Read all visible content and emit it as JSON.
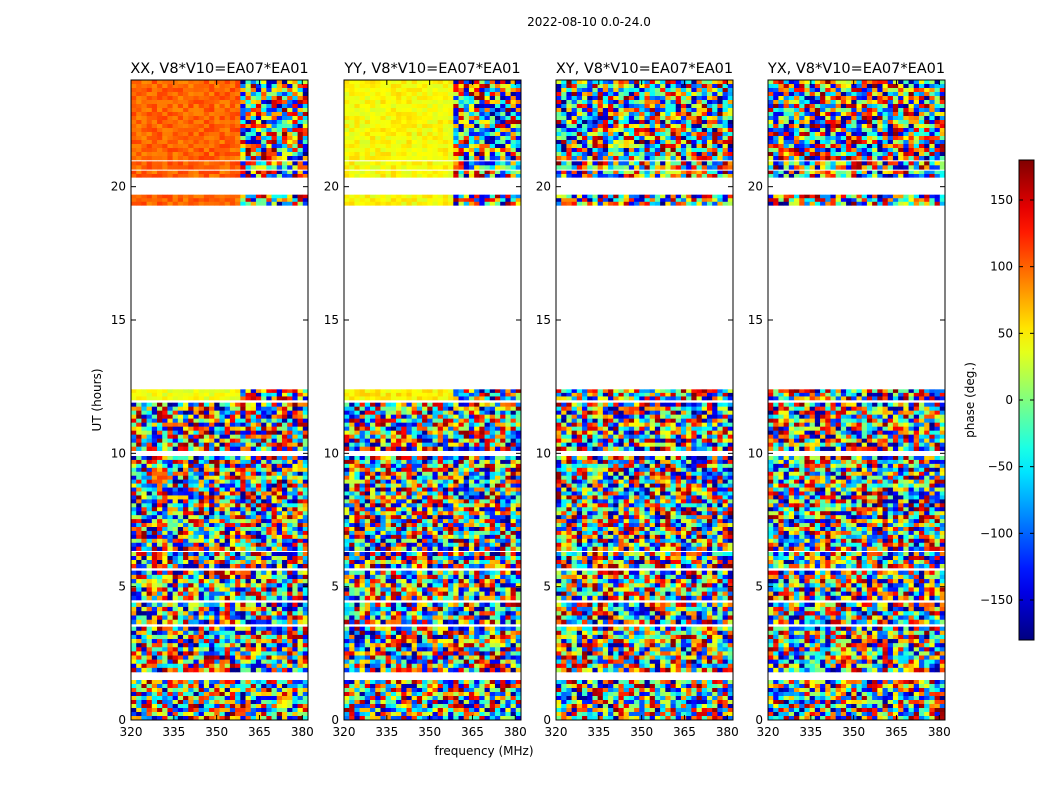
{
  "chart_data": {
    "type": "heatmap",
    "suptitle": "2022-08-10 0.0-24.0",
    "xlabel": "frequency (MHz)",
    "ylabel": "UT (hours)",
    "xlim": [
      320,
      382
    ],
    "ylim": [
      0,
      24
    ],
    "x_ticks": [
      320,
      335,
      350,
      365,
      380
    ],
    "y_ticks": [
      0,
      5,
      10,
      15,
      20
    ],
    "colorbar": {
      "label": "phase (deg.)",
      "range": [
        -180,
        180
      ],
      "ticks": [
        -150,
        -100,
        -50,
        0,
        50,
        100,
        150
      ],
      "tick_labels": [
        "−150",
        "−100",
        "−50",
        "0",
        "50",
        "100",
        "150"
      ],
      "colormap": "jet"
    },
    "data_segments_ut": [
      [
        0.0,
        1.5
      ],
      [
        1.8,
        3.5
      ],
      [
        3.6,
        4.4
      ],
      [
        4.5,
        5.6
      ],
      [
        5.7,
        6.3
      ],
      [
        6.35,
        9.9
      ],
      [
        10.1,
        11.9
      ],
      [
        12.0,
        12.4
      ],
      [
        19.3,
        19.7
      ],
      [
        20.35,
        20.6
      ],
      [
        20.65,
        20.95
      ],
      [
        21.0,
        24.0
      ]
    ],
    "panels": [
      {
        "title": "XX, V8*V10=EA07*EA01",
        "smooth_until_ut_high": 24,
        "dominant_phase_high": 100,
        "dominant_phase_low": 40
      },
      {
        "title": "YY, V8*V10=EA07*EA01",
        "smooth_until_ut_high": 24,
        "dominant_phase_high": 45,
        "dominant_phase_low": 50
      },
      {
        "title": "XY, V8*V10=EA07*EA01",
        "smooth_until_ut_high": 0,
        "dominant_phase_high": 0,
        "dominant_phase_low": 0
      },
      {
        "title": "YX, V8*V10=EA07*EA01",
        "smooth_until_ut_high": 0,
        "dominant_phase_high": 0,
        "dominant_phase_low": 0
      }
    ]
  }
}
